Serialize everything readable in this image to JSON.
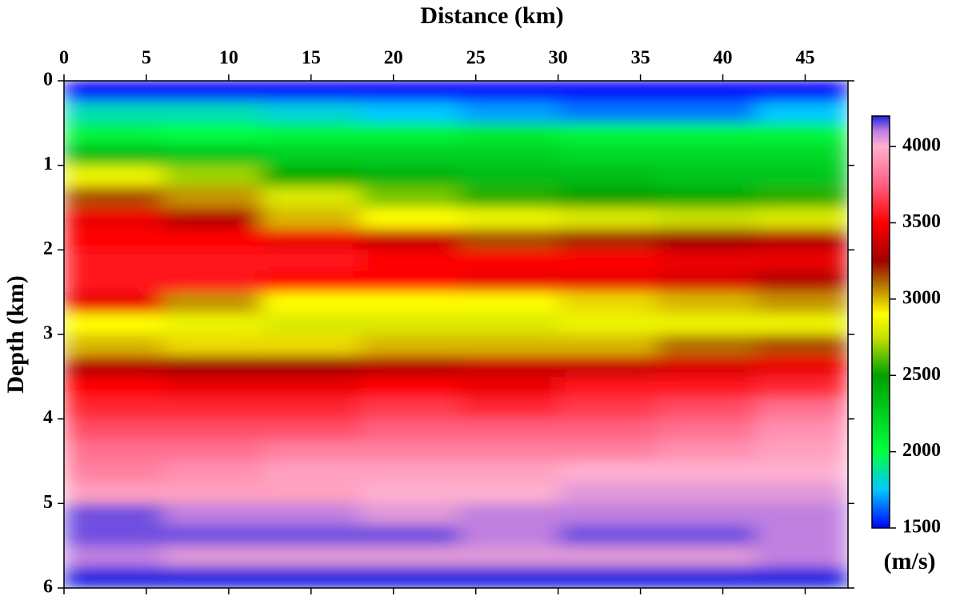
{
  "chart_data": {
    "type": "heatmap",
    "title": "Distance (km)",
    "y_label": "Depth (km)",
    "colorbar_label": "(m/s)",
    "xlim": [
      0,
      47.6
    ],
    "xticks": [
      0,
      5,
      10,
      15,
      20,
      25,
      30,
      35,
      40,
      45
    ],
    "ylim": [
      0,
      6
    ],
    "yticks": [
      0,
      1,
      2,
      3,
      4,
      5,
      6
    ],
    "zlim": [
      1500,
      4200
    ],
    "zticks": [
      1500,
      2000,
      2500,
      3000,
      3500,
      4000
    ],
    "colormap": [
      {
        "value": 1500,
        "color": "#0000ff"
      },
      {
        "value": 1750,
        "color": "#00c8ff"
      },
      {
        "value": 2000,
        "color": "#00ff40"
      },
      {
        "value": 2500,
        "color": "#00a000"
      },
      {
        "value": 2750,
        "color": "#c8e000"
      },
      {
        "value": 2900,
        "color": "#ffff00"
      },
      {
        "value": 3100,
        "color": "#b07000"
      },
      {
        "value": 3250,
        "color": "#a00000"
      },
      {
        "value": 3500,
        "color": "#ff0000"
      },
      {
        "value": 3750,
        "color": "#ff6080"
      },
      {
        "value": 4000,
        "color": "#ffb0d0"
      },
      {
        "value": 4100,
        "color": "#c080e0"
      },
      {
        "value": 4200,
        "color": "#2020e0"
      }
    ],
    "x_edges": [
      0,
      6,
      12,
      18,
      24,
      30,
      36,
      42,
      47.6
    ],
    "y_edges": [
      0,
      0.25,
      0.5,
      0.75,
      1,
      1.25,
      1.5,
      1.75,
      2,
      2.25,
      2.5,
      2.75,
      3,
      3.25,
      3.5,
      3.75,
      4,
      4.25,
      4.5,
      4.75,
      5,
      5.25,
      5.5,
      5.75,
      6
    ],
    "z": [
      [
        1500,
        1500,
        1500,
        1500,
        1500,
        1500,
        1500,
        1500
      ],
      [
        1850,
        1850,
        1800,
        1750,
        1700,
        1650,
        1650,
        1750
      ],
      [
        2050,
        2000,
        2050,
        2050,
        2100,
        2050,
        2050,
        2050
      ],
      [
        2350,
        2300,
        2250,
        2250,
        2250,
        2200,
        2200,
        2200
      ],
      [
        2850,
        2700,
        2450,
        2400,
        2350,
        2350,
        2300,
        2300
      ],
      [
        3150,
        3050,
        2800,
        2650,
        2550,
        2500,
        2450,
        2550
      ],
      [
        3450,
        3300,
        3000,
        2900,
        2850,
        2800,
        2750,
        2800
      ],
      [
        3500,
        3500,
        3450,
        3350,
        3150,
        3200,
        3250,
        3300
      ],
      [
        3550,
        3550,
        3550,
        3500,
        3500,
        3500,
        3450,
        3450
      ],
      [
        3550,
        3550,
        3500,
        3500,
        3450,
        3450,
        3400,
        3300
      ],
      [
        3450,
        3050,
        2900,
        2900,
        2900,
        2950,
        3000,
        3050
      ],
      [
        2900,
        2850,
        2800,
        2800,
        2800,
        2850,
        2850,
        2850
      ],
      [
        3000,
        2950,
        2950,
        3000,
        3000,
        3000,
        3100,
        3150
      ],
      [
        3300,
        3250,
        3250,
        3300,
        3350,
        3350,
        3400,
        3450
      ],
      [
        3500,
        3450,
        3450,
        3500,
        3450,
        3550,
        3550,
        3600
      ],
      [
        3600,
        3600,
        3600,
        3650,
        3600,
        3650,
        3700,
        3800
      ],
      [
        3700,
        3700,
        3700,
        3750,
        3750,
        3750,
        3800,
        3900
      ],
      [
        3800,
        3800,
        3850,
        3850,
        3850,
        3850,
        3900,
        3950
      ],
      [
        3850,
        3900,
        3950,
        3950,
        3950,
        4000,
        4000,
        4000
      ],
      [
        3950,
        3950,
        3950,
        4000,
        4000,
        4050,
        4050,
        4050
      ],
      [
        4150,
        4100,
        4100,
        4050,
        4100,
        4100,
        4100,
        4100
      ],
      [
        4150,
        4150,
        4150,
        4150,
        4100,
        4150,
        4150,
        4100
      ],
      [
        4100,
        4050,
        4050,
        4050,
        4050,
        4050,
        4050,
        4100
      ],
      [
        4200,
        4200,
        4200,
        4200,
        4200,
        4200,
        4200,
        4200
      ]
    ]
  }
}
